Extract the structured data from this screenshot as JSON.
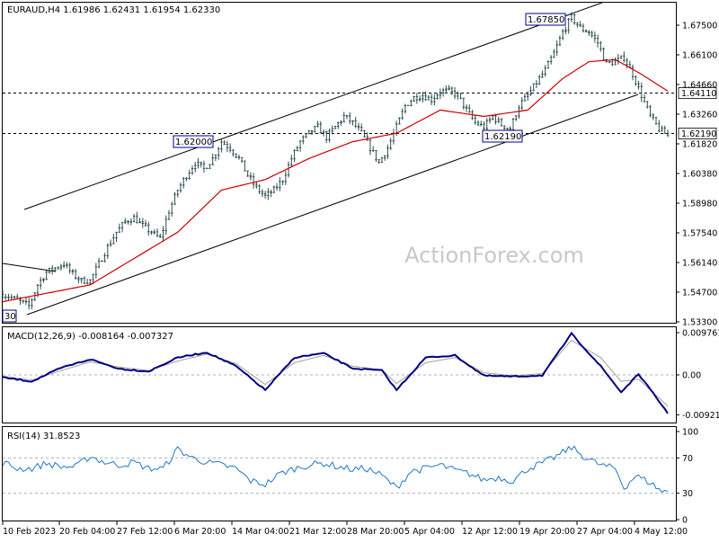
{
  "watermark": "ActionForex.com",
  "colors": {
    "background": "#ffffff",
    "candle": "#2f4f4f",
    "ma": "#cc0000",
    "macd": "#000080",
    "signal": "#a0a0a0",
    "rsi": "#1e78c8",
    "grid": "#b0b0b0"
  },
  "chart_data": [
    {
      "type": "candlestick",
      "title": "EURAUD,H4  1.61986 1.62431 1.61954 1.62330",
      "y_ticks": [
        "1.67500",
        "1.66100",
        "1.64660",
        "1.63260",
        "1.61820",
        "1.60380",
        "1.58980",
        "1.57540",
        "1.56140",
        "1.54700",
        "1.53300"
      ],
      "ylim": [
        1.532,
        1.684
      ],
      "x_ticks": [
        "10 Feb 2023",
        "20 Feb 04:00",
        "27 Feb 12:00",
        "6 Mar 20:00",
        "14 Mar 04:00",
        "21 Mar 12:00",
        "28 Mar 20:00",
        "5 Apr 04:00",
        "12 Apr 12:00",
        "19 Apr 20:00",
        "27 Apr 04:00",
        "4 May 12:00"
      ],
      "levels": [
        {
          "value": 1.6411,
          "label": "1.64110"
        },
        {
          "value": 1.6219,
          "label": "1.62190"
        }
      ],
      "annotations": [
        "1.67850",
        "1.62000",
        "1.62190",
        "30"
      ],
      "path": [
        [
          0,
          1.5455
        ],
        [
          3,
          1.544
        ],
        [
          6,
          1.542
        ],
        [
          9,
          1.54
        ],
        [
          12,
          1.55
        ],
        [
          15,
          1.556
        ],
        [
          18,
          1.558
        ],
        [
          21,
          1.56
        ],
        [
          24,
          1.555
        ],
        [
          27,
          1.552
        ],
        [
          30,
          1.552
        ],
        [
          33,
          1.56
        ],
        [
          36,
          1.568
        ],
        [
          39,
          1.575
        ],
        [
          42,
          1.58
        ],
        [
          45,
          1.582
        ],
        [
          48,
          1.578
        ],
        [
          51,
          1.575
        ],
        [
          54,
          1.572
        ],
        [
          57,
          1.585
        ],
        [
          60,
          1.595
        ],
        [
          63,
          1.602
        ],
        [
          66,
          1.608
        ],
        [
          69,
          1.605
        ],
        [
          72,
          1.61
        ],
        [
          75,
          1.618
        ],
        [
          78,
          1.615
        ],
        [
          81,
          1.61
        ],
        [
          84,
          1.602
        ],
        [
          87,
          1.596
        ],
        [
          90,
          1.592
        ],
        [
          93,
          1.595
        ],
        [
          96,
          1.6
        ],
        [
          99,
          1.61
        ],
        [
          102,
          1.618
        ],
        [
          105,
          1.622
        ],
        [
          108,
          1.625
        ],
        [
          111,
          1.62
        ],
        [
          114,
          1.625
        ],
        [
          117,
          1.63
        ],
        [
          120,
          1.627
        ],
        [
          123,
          1.622
        ],
        [
          126,
          1.615
        ],
        [
          129,
          1.608
        ],
        [
          132,
          1.615
        ],
        [
          135,
          1.625
        ],
        [
          138,
          1.635
        ],
        [
          141,
          1.639
        ],
        [
          144,
          1.64
        ],
        [
          147,
          1.638
        ],
        [
          150,
          1.642
        ],
        [
          153,
          1.642
        ],
        [
          156,
          1.64
        ],
        [
          159,
          1.633
        ],
        [
          162,
          1.627
        ],
        [
          165,
          1.625
        ],
        [
          168,
          1.63
        ],
        [
          171,
          1.626
        ],
        [
          174,
          1.624
        ],
        [
          177,
          1.635
        ],
        [
          180,
          1.64
        ],
        [
          183,
          1.646
        ],
        [
          186,
          1.652
        ],
        [
          189,
          1.66
        ],
        [
          192,
          1.67
        ],
        [
          195,
          1.677
        ],
        [
          198,
          1.672
        ],
        [
          201,
          1.67
        ],
        [
          204,
          1.665
        ],
        [
          207,
          1.655
        ],
        [
          210,
          1.656
        ],
        [
          213,
          1.658
        ],
        [
          216,
          1.65
        ],
        [
          219,
          1.64
        ],
        [
          222,
          1.63
        ],
        [
          225,
          1.624
        ],
        [
          228,
          1.621
        ]
      ],
      "ma": [
        [
          0,
          1.542
        ],
        [
          30,
          1.55
        ],
        [
          60,
          1.575
        ],
        [
          75,
          1.595
        ],
        [
          90,
          1.6
        ],
        [
          105,
          1.61
        ],
        [
          120,
          1.618
        ],
        [
          135,
          1.622
        ],
        [
          150,
          1.633
        ],
        [
          165,
          1.63
        ],
        [
          180,
          1.633
        ],
        [
          192,
          1.648
        ],
        [
          201,
          1.656
        ],
        [
          210,
          1.657
        ],
        [
          219,
          1.65
        ],
        [
          228,
          1.642
        ]
      ]
    },
    {
      "type": "line",
      "title": "MACD(12,26,9) -0.008164 -0.007327",
      "y_ticks": [
        "0.009761",
        "0.00",
        "-0.009216"
      ],
      "ylim": [
        -0.011,
        0.011
      ],
      "macd": [
        [
          0,
          -0.0006
        ],
        [
          10,
          -0.0015
        ],
        [
          20,
          0.0016
        ],
        [
          30,
          0.0036
        ],
        [
          40,
          0.0014
        ],
        [
          50,
          0.0008
        ],
        [
          60,
          0.004
        ],
        [
          70,
          0.0052
        ],
        [
          80,
          0.002
        ],
        [
          90,
          -0.0035
        ],
        [
          100,
          0.004
        ],
        [
          110,
          0.005
        ],
        [
          120,
          0.0015
        ],
        [
          130,
          0.001
        ],
        [
          135,
          -0.0035
        ],
        [
          145,
          0.004
        ],
        [
          155,
          0.0045
        ],
        [
          165,
          -0.0002
        ],
        [
          175,
          -0.0004
        ],
        [
          185,
          -0.0001
        ],
        [
          195,
          0.0095
        ],
        [
          205,
          0.002
        ],
        [
          212,
          -0.004
        ],
        [
          218,
          0.0002
        ],
        [
          228,
          -0.0088
        ]
      ],
      "signal": [
        [
          0,
          -0.0003
        ],
        [
          10,
          -0.0012
        ],
        [
          20,
          0.001
        ],
        [
          30,
          0.003
        ],
        [
          40,
          0.0018
        ],
        [
          50,
          0.001
        ],
        [
          60,
          0.0032
        ],
        [
          70,
          0.0048
        ],
        [
          80,
          0.0026
        ],
        [
          90,
          -0.0022
        ],
        [
          100,
          0.0028
        ],
        [
          110,
          0.0045
        ],
        [
          120,
          0.002
        ],
        [
          130,
          0.0012
        ],
        [
          135,
          -0.002
        ],
        [
          145,
          0.0028
        ],
        [
          155,
          0.004
        ],
        [
          165,
          0.0005
        ],
        [
          175,
          -0.0002
        ],
        [
          185,
          0.0003
        ],
        [
          195,
          0.008
        ],
        [
          205,
          0.004
        ],
        [
          212,
          -0.0015
        ],
        [
          218,
          -0.001
        ],
        [
          228,
          -0.0072
        ]
      ]
    },
    {
      "type": "line",
      "title": "RSI(14) 31.8523",
      "y_ticks": [
        "100",
        "70",
        "30",
        "0"
      ],
      "ylim": [
        0,
        100
      ],
      "levels": [
        70,
        30
      ],
      "rsi": [
        [
          0,
          65
        ],
        [
          5,
          58
        ],
        [
          10,
          58
        ],
        [
          15,
          64
        ],
        [
          20,
          60
        ],
        [
          25,
          60
        ],
        [
          30,
          72
        ],
        [
          35,
          65
        ],
        [
          40,
          62
        ],
        [
          45,
          65
        ],
        [
          50,
          58
        ],
        [
          55,
          58
        ],
        [
          60,
          80
        ],
        [
          65,
          70
        ],
        [
          70,
          65
        ],
        [
          75,
          62
        ],
        [
          80,
          58
        ],
        [
          85,
          44
        ],
        [
          90,
          40
        ],
        [
          95,
          52
        ],
        [
          100,
          58
        ],
        [
          105,
          62
        ],
        [
          110,
          64
        ],
        [
          115,
          60
        ],
        [
          120,
          57
        ],
        [
          125,
          58
        ],
        [
          130,
          50
        ],
        [
          135,
          36
        ],
        [
          140,
          55
        ],
        [
          145,
          58
        ],
        [
          150,
          62
        ],
        [
          155,
          56
        ],
        [
          160,
          52
        ],
        [
          165,
          45
        ],
        [
          170,
          48
        ],
        [
          175,
          44
        ],
        [
          180,
          58
        ],
        [
          185,
          64
        ],
        [
          190,
          72
        ],
        [
          195,
          82
        ],
        [
          200,
          70
        ],
        [
          205,
          62
        ],
        [
          210,
          58
        ],
        [
          213,
          36
        ],
        [
          217,
          50
        ],
        [
          222,
          42
        ],
        [
          226,
          32
        ],
        [
          228,
          31.85
        ]
      ]
    }
  ]
}
